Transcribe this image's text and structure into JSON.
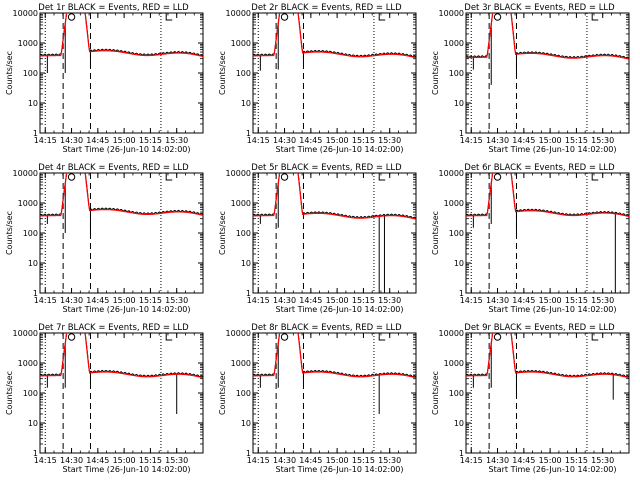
{
  "chart_data": [
    {
      "type": "line",
      "title": "Det 1r BLACK = Events, RED = LLD",
      "xlabel": "Start Time (26-Jun-10 14:02:00)",
      "ylabel": "Counts/sec",
      "yscale": "log",
      "ylim": [
        1,
        10000
      ],
      "xlim": [
        14.2,
        15.75
      ],
      "xticks": [
        "14:15",
        "14:30",
        "14:45",
        "15:00",
        "15:15",
        "15:30"
      ],
      "yticks": [
        "1",
        "10",
        "100",
        "1000",
        "10000"
      ],
      "markers": {
        "O": 14.5,
        "L": 15.4
      },
      "dashed_lines": [
        14.42,
        14.68
      ],
      "dotted_lines": [
        14.25,
        15.35
      ],
      "series": [
        {
          "name": "Events",
          "color": "#000000"
        },
        {
          "name": "LLD",
          "color": "#ff0000"
        }
      ],
      "level_pre": 400,
      "level_post": 550,
      "peak": 10000,
      "dips": [
        [
          14.27,
          100
        ],
        [
          14.44,
          100
        ],
        [
          14.68,
          150
        ]
      ]
    },
    {
      "type": "line",
      "title": "Det 2r BLACK = Events, RED = LLD",
      "xlabel": "Start Time (26-Jun-10 14:02:00)",
      "ylabel": "Counts/sec",
      "yscale": "log",
      "ylim": [
        1,
        10000
      ],
      "xlim": [
        14.2,
        15.75
      ],
      "xticks": [
        "14:15",
        "14:30",
        "14:45",
        "15:00",
        "15:15",
        "15:30"
      ],
      "yticks": [
        "1",
        "10",
        "100",
        "1000",
        "10000"
      ],
      "markers": {
        "O": 14.5,
        "L": 15.4
      },
      "dashed_lines": [
        14.42,
        14.68
      ],
      "dotted_lines": [
        14.25,
        15.35
      ],
      "series": [
        {
          "name": "Events",
          "color": "#000000"
        },
        {
          "name": "LLD",
          "color": "#ff0000"
        }
      ],
      "level_pre": 400,
      "level_post": 500,
      "peak": 10000,
      "dips": [
        [
          14.27,
          120
        ],
        [
          14.44,
          130
        ],
        [
          14.68,
          200
        ]
      ]
    },
    {
      "type": "line",
      "title": "Det 3r BLACK = Events, RED = LLD",
      "xlabel": "Start Time (26-Jun-10 14:02:00)",
      "ylabel": "Counts/sec",
      "yscale": "log",
      "ylim": [
        1,
        10000
      ],
      "xlim": [
        14.2,
        15.75
      ],
      "xticks": [
        "14:15",
        "14:30",
        "14:45",
        "15:00",
        "15:15",
        "15:30"
      ],
      "yticks": [
        "1",
        "10",
        "100",
        "1000",
        "10000"
      ],
      "markers": {
        "O": 14.5,
        "L": 15.4
      },
      "dashed_lines": [
        14.42,
        14.68
      ],
      "dotted_lines": [
        14.25,
        15.35
      ],
      "series": [
        {
          "name": "Events",
          "color": "#000000"
        },
        {
          "name": "LLD",
          "color": "#ff0000"
        }
      ],
      "level_pre": 350,
      "level_post": 450,
      "peak": 10000,
      "dips": [
        [
          14.27,
          130
        ],
        [
          14.44,
          40
        ],
        [
          14.68,
          100
        ]
      ]
    },
    {
      "type": "line",
      "title": "Det 4r BLACK = Events, RED = LLD",
      "xlabel": "Start Time (26-Jun-10 14:02:00)",
      "ylabel": "Counts/sec",
      "yscale": "log",
      "ylim": [
        1,
        10000
      ],
      "xlim": [
        14.2,
        15.75
      ],
      "xticks": [
        "14:15",
        "14:30",
        "14:45",
        "15:00",
        "15:15",
        "15:30"
      ],
      "yticks": [
        "1",
        "10",
        "100",
        "1000",
        "10000"
      ],
      "markers": {
        "O": 14.5,
        "L": 15.4
      },
      "dashed_lines": [
        14.42,
        14.68
      ],
      "dotted_lines": [
        14.25,
        15.35
      ],
      "series": [
        {
          "name": "Events",
          "color": "#000000"
        },
        {
          "name": "LLD",
          "color": "#ff0000"
        }
      ],
      "level_pre": 400,
      "level_post": 600,
      "peak": 10000,
      "dips": [
        [
          14.27,
          200
        ],
        [
          14.44,
          100
        ],
        [
          14.68,
          100
        ]
      ]
    },
    {
      "type": "line",
      "title": "Det 5r BLACK = Events, RED = LLD",
      "xlabel": "Start Time (26-Jun-10 14:02:00)",
      "ylabel": "Counts/sec",
      "yscale": "log",
      "ylim": [
        1,
        10000
      ],
      "xlim": [
        14.2,
        15.75
      ],
      "xticks": [
        "14:15",
        "14:30",
        "14:45",
        "15:00",
        "15:15",
        "15:30"
      ],
      "yticks": [
        "1",
        "10",
        "100",
        "1000",
        "10000"
      ],
      "markers": {
        "O": 14.5,
        "L": 15.4
      },
      "dashed_lines": [
        14.42,
        14.68
      ],
      "dotted_lines": [
        14.25,
        15.35
      ],
      "series": [
        {
          "name": "Events",
          "color": "#000000"
        },
        {
          "name": "LLD",
          "color": "#ff0000"
        }
      ],
      "level_pre": 400,
      "level_post": 450,
      "peak": 10000,
      "dips": [
        [
          14.27,
          200
        ],
        [
          14.44,
          150
        ],
        [
          15.4,
          1
        ],
        [
          15.45,
          1
        ]
      ]
    },
    {
      "type": "line",
      "title": "Det 6r BLACK = Events, RED = LLD",
      "xlabel": "Start Time (26-Jun-10 14:02:00)",
      "ylabel": "Counts/sec",
      "yscale": "log",
      "ylim": [
        1,
        10000
      ],
      "xlim": [
        14.2,
        15.75
      ],
      "xticks": [
        "14:15",
        "14:30",
        "14:45",
        "15:00",
        "15:15",
        "15:30"
      ],
      "yticks": [
        "1",
        "10",
        "100",
        "1000",
        "10000"
      ],
      "markers": {
        "O": 14.5,
        "L": 15.4
      },
      "dashed_lines": [
        14.42,
        14.68
      ],
      "dotted_lines": [
        14.25,
        15.35
      ],
      "series": [
        {
          "name": "Events",
          "color": "#000000"
        },
        {
          "name": "LLD",
          "color": "#ff0000"
        }
      ],
      "level_pre": 400,
      "level_post": 550,
      "peak": 10000,
      "dips": [
        [
          14.27,
          150
        ],
        [
          14.44,
          200
        ],
        [
          14.68,
          100
        ],
        [
          15.62,
          1
        ]
      ]
    },
    {
      "type": "line",
      "title": "Det 7r BLACK = Events, RED = LLD",
      "xlabel": "Start Time (26-Jun-10 14:02:00)",
      "ylabel": "Counts/sec",
      "yscale": "log",
      "ylim": [
        1,
        10000
      ],
      "xlim": [
        14.2,
        15.75
      ],
      "xticks": [
        "14:15",
        "14:30",
        "14:45",
        "15:00",
        "15:15",
        "15:30"
      ],
      "yticks": [
        "1",
        "10",
        "100",
        "1000",
        "10000"
      ],
      "markers": {
        "O": 14.5,
        "L": 15.4
      },
      "dashed_lines": [
        14.42,
        14.68
      ],
      "dotted_lines": [
        14.25,
        15.35
      ],
      "series": [
        {
          "name": "Events",
          "color": "#000000"
        },
        {
          "name": "LLD",
          "color": "#ff0000"
        }
      ],
      "level_pre": 400,
      "level_post": 500,
      "peak": 10000,
      "dips": [
        [
          14.27,
          150
        ],
        [
          14.44,
          150
        ],
        [
          14.68,
          200
        ],
        [
          15.5,
          20
        ]
      ]
    },
    {
      "type": "line",
      "title": "Det 8r BLACK = Events, RED = LLD",
      "xlabel": "Start Time (26-Jun-10 14:02:00)",
      "ylabel": "Counts/sec",
      "yscale": "log",
      "ylim": [
        1,
        10000
      ],
      "xlim": [
        14.2,
        15.75
      ],
      "xticks": [
        "14:15",
        "14:30",
        "14:45",
        "15:00",
        "15:15",
        "15:30"
      ],
      "yticks": [
        "1",
        "10",
        "100",
        "1000",
        "10000"
      ],
      "markers": {
        "O": 14.5,
        "L": 15.4
      },
      "dashed_lines": [
        14.42,
        14.68
      ],
      "dotted_lines": [
        14.25,
        15.35
      ],
      "series": [
        {
          "name": "Events",
          "color": "#000000"
        },
        {
          "name": "LLD",
          "color": "#ff0000"
        }
      ],
      "level_pre": 400,
      "level_post": 500,
      "peak": 10000,
      "dips": [
        [
          14.27,
          150
        ],
        [
          14.44,
          150
        ],
        [
          14.68,
          200
        ],
        [
          15.4,
          20
        ]
      ]
    },
    {
      "type": "line",
      "title": "Det 9r BLACK = Events, RED = LLD",
      "xlabel": "Start Time (26-Jun-10 14:02:00)",
      "ylabel": "Counts/sec",
      "yscale": "log",
      "ylim": [
        1,
        10000
      ],
      "xlim": [
        14.2,
        15.75
      ],
      "xticks": [
        "14:15",
        "14:30",
        "14:45",
        "15:00",
        "15:15",
        "15:30"
      ],
      "yticks": [
        "1",
        "10",
        "100",
        "1000",
        "10000"
      ],
      "markers": {
        "O": 14.5,
        "L": 15.4
      },
      "dashed_lines": [
        14.42,
        14.68
      ],
      "dotted_lines": [
        14.25,
        15.35
      ],
      "series": [
        {
          "name": "Events",
          "color": "#000000"
        },
        {
          "name": "LLD",
          "color": "#ff0000"
        }
      ],
      "level_pre": 400,
      "level_post": 500,
      "peak": 10000,
      "dips": [
        [
          14.27,
          150
        ],
        [
          14.44,
          150
        ],
        [
          14.68,
          100
        ],
        [
          15.6,
          60
        ]
      ]
    }
  ]
}
